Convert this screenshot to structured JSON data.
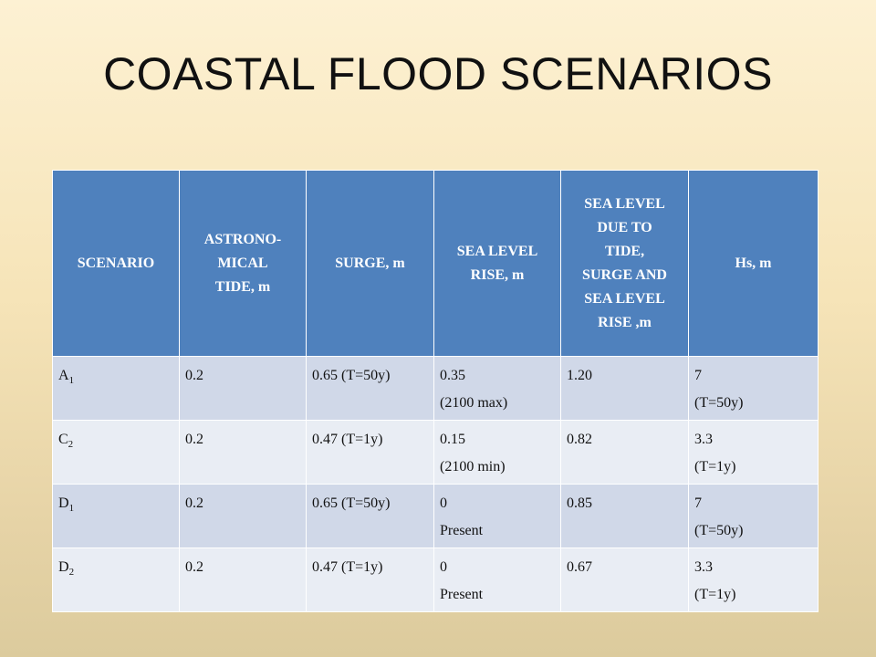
{
  "title": "COASTAL FLOOD SCENARIOS",
  "headers": [
    [
      "SCENARIO"
    ],
    [
      "ASTRONO-",
      "MICAL",
      "TIDE, m"
    ],
    [
      "SURGE, m"
    ],
    [
      "SEA LEVEL",
      "RISE, m"
    ],
    [
      "SEA LEVEL",
      "DUE TO",
      "TIDE,",
      "SURGE AND",
      "SEA LEVEL",
      "RISE ,m"
    ],
    [
      "Hs, m"
    ]
  ],
  "rows": [
    {
      "scenario": {
        "letter": "A",
        "sub": "1"
      },
      "tide": "0.2",
      "surge": "0.65 (T=50y)",
      "slr": [
        "0.35",
        "(2100 max)"
      ],
      "total": "1.20",
      "hs": [
        "7",
        "(T=50y)"
      ]
    },
    {
      "scenario": {
        "letter": "C",
        "sub": "2"
      },
      "tide": "0.2",
      "surge": "0.47 (T=1y)",
      "slr": [
        "0.15",
        "(2100 min)"
      ],
      "total": "0.82",
      "hs": [
        "3.3",
        "(T=1y)"
      ]
    },
    {
      "scenario": {
        "letter": "D",
        "sub": "1"
      },
      "tide": "0.2",
      "surge": "0.65 (T=50y)",
      "slr": [
        "0",
        "Present"
      ],
      "total": "0.85",
      "hs": [
        "7",
        "(T=50y)"
      ]
    },
    {
      "scenario": {
        "letter": "D",
        "sub": "2"
      },
      "tide": "0.2",
      "surge": "0.47 (T=1y)",
      "slr": [
        "0",
        "Present"
      ],
      "total": "0.67",
      "hs": [
        "3.3",
        "(T=1y)"
      ]
    }
  ],
  "colors": {
    "header_bg": "#4f81bd",
    "row_odd": "#d0d8e8",
    "row_even": "#e9edf4"
  }
}
